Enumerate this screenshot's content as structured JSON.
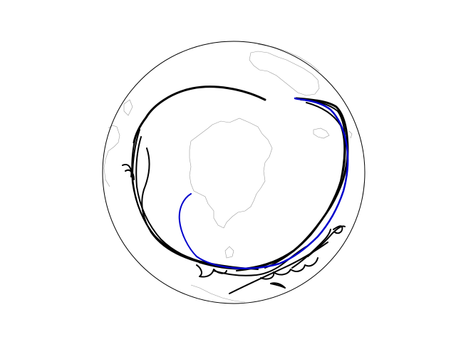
{
  "map": {
    "projection": "south-polar-stereographic",
    "background_color": "#ffffff",
    "boundary_color": "#000000",
    "coastline_color": "#9a9a9a",
    "trajectory_colors": [
      "#000000",
      "#0000cc"
    ],
    "track_counts": {
      "black": 12,
      "blue": 1
    }
  }
}
